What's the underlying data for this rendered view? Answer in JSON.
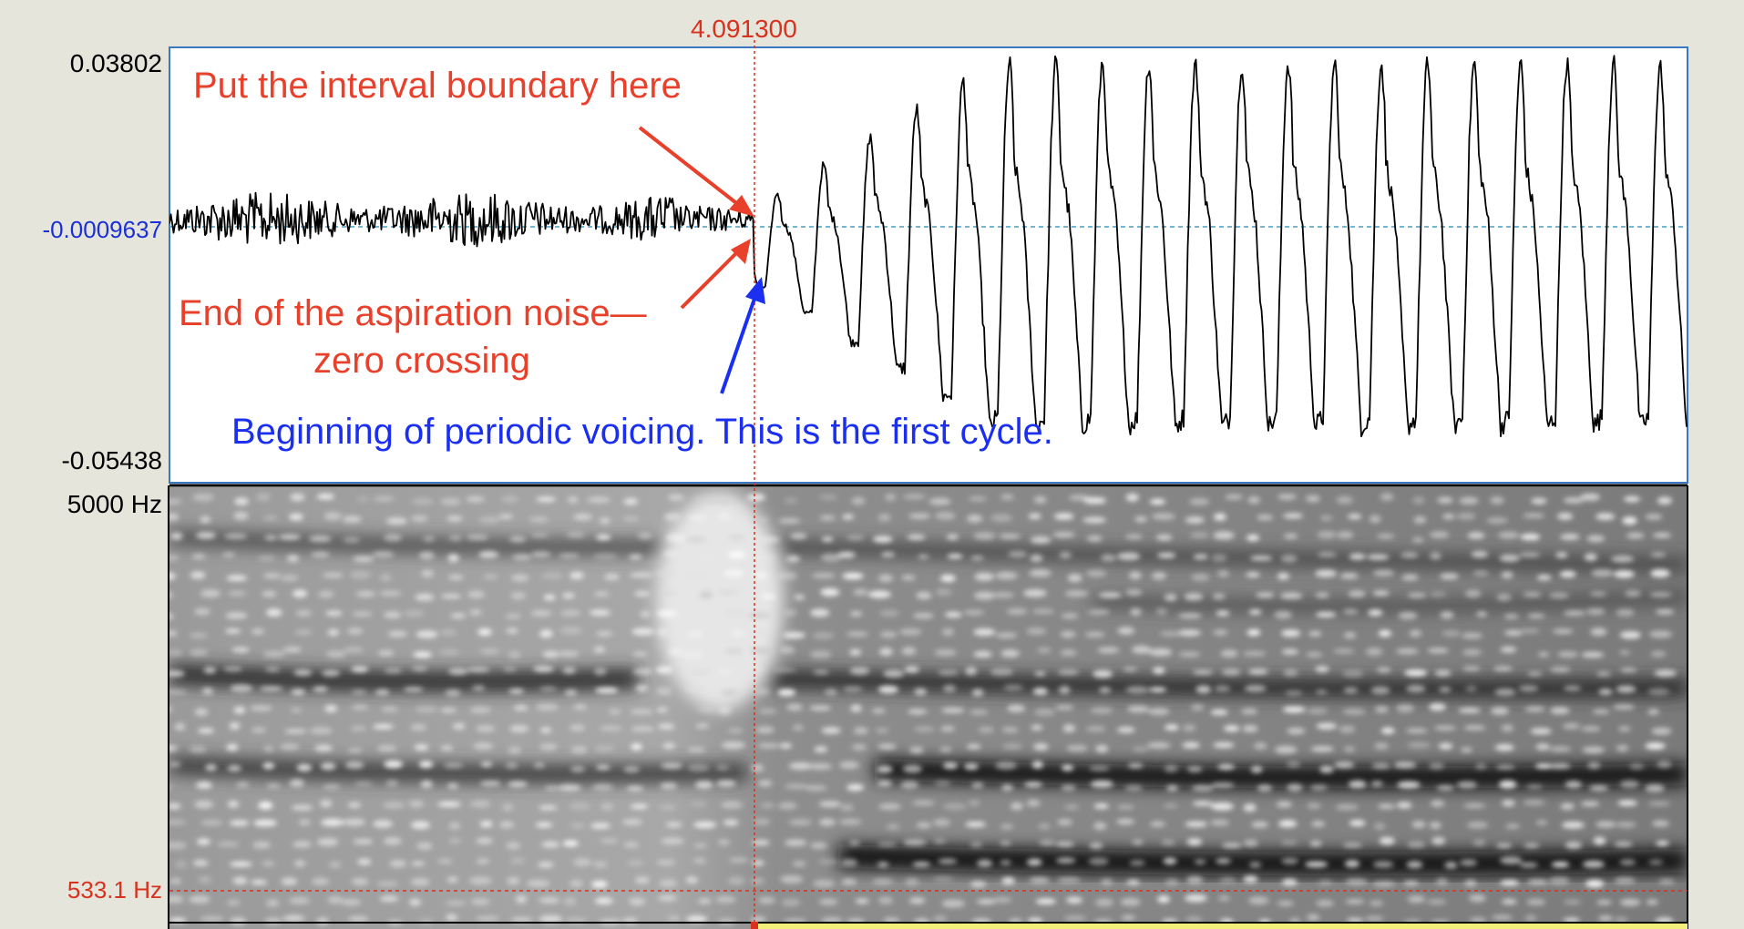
{
  "cursor": {
    "time_label": "4.091300"
  },
  "waveform": {
    "amp_max_label": "0.03802",
    "amp_cursor_label": "-0.0009637",
    "amp_min_label": "-0.05438"
  },
  "spectrogram": {
    "freq_max_label": "5000 Hz",
    "freq_cursor_label": "533.1 Hz"
  },
  "annotations": {
    "boundary_note": "Put the interval boundary here",
    "aspiration_note_line1": "End of the aspiration noise—",
    "aspiration_note_line2": "zero crossing",
    "voicing_note": "Beginning of periodic voicing. This is the first cycle."
  },
  "colors": {
    "background": "#e6e5dc",
    "cursor_red": "#d8321e",
    "annotation_red": "#e8402a",
    "annotation_blue": "#1a2ff0",
    "selection_yellow": "#f2ef7a",
    "panel_border": "#3a78c2"
  }
}
